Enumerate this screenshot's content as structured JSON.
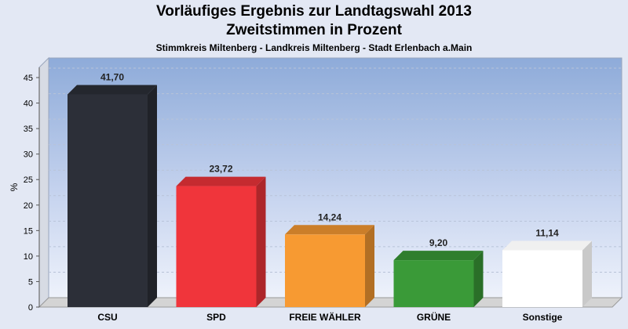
{
  "chart_data": {
    "type": "bar",
    "title": "Vorläufiges Ergebnis zur Landtagswahl 2013",
    "title_line2": "Zweitstimmen in Prozent",
    "subtitle": "Stimmkreis Miltenberg - Landkreis Miltenberg - Stadt Erlenbach a.Main",
    "ylabel": "%",
    "xlabel": "",
    "ylim": [
      0,
      47
    ],
    "yticks": [
      0,
      5,
      10,
      15,
      20,
      25,
      30,
      35,
      40,
      45
    ],
    "grid": true,
    "categories": [
      "CSU",
      "SPD",
      "FREIE WÄHLER",
      "GRÜNE",
      "Sonstige"
    ],
    "values": [
      41.7,
      23.72,
      14.24,
      9.2,
      11.14
    ],
    "value_labels": [
      "41,70",
      "23,72",
      "14,24",
      "9,20",
      "11,14"
    ],
    "colors": [
      "#2c2f38",
      "#f0353b",
      "#f79a32",
      "#3a9a38",
      "#ffffff"
    ]
  }
}
